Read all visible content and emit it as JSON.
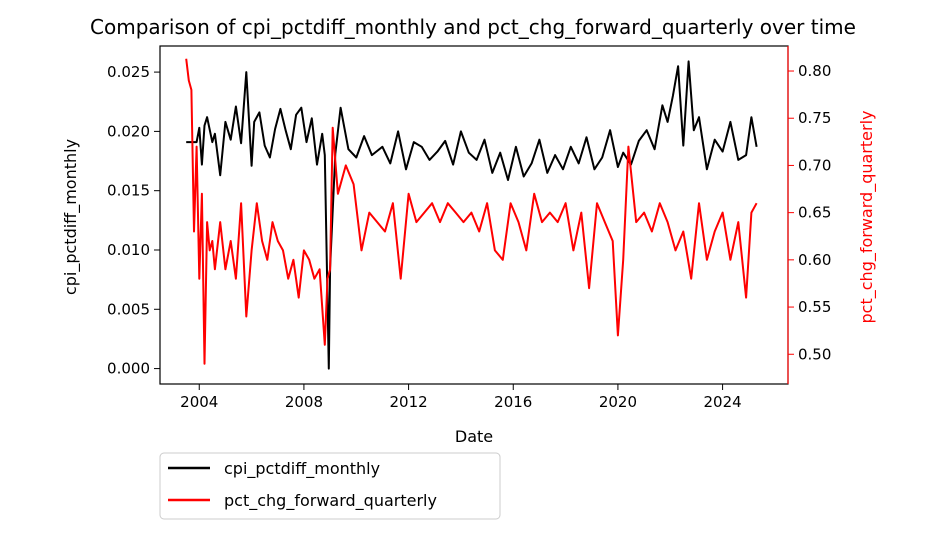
{
  "chart_data": {
    "type": "line",
    "title": "Comparison of cpi_pctdiff_monthly and pct_chg_forward_quarterly over time",
    "xlabel": "Date",
    "x_ticks": [
      "2004",
      "2008",
      "2012",
      "2016",
      "2020",
      "2024"
    ],
    "x_range": [
      2002.5,
      2026.5
    ],
    "left_axis": {
      "label": "cpi_pctdiff_monthly",
      "color": "#000000",
      "ylim": [
        -0.0013,
        0.0272
      ],
      "ticks": [
        "0.000",
        "0.005",
        "0.010",
        "0.015",
        "0.020",
        "0.025"
      ]
    },
    "right_axis": {
      "label": "pct_chg_forward_quarterly",
      "color": "#ff0000",
      "ylim": [
        0.4685,
        0.8265
      ],
      "ticks": [
        "0.50",
        "0.55",
        "0.60",
        "0.65",
        "0.70",
        "0.75",
        "0.80"
      ]
    },
    "legend": {
      "placement": "below-left",
      "entries": [
        "cpi_pctdiff_monthly",
        "pct_chg_forward_quarterly"
      ]
    },
    "series": [
      {
        "name": "cpi_pctdiff_monthly",
        "axis": "left",
        "color": "#000000",
        "x": [
          2003.5,
          2003.9,
          2004.0,
          2004.1,
          2004.2,
          2004.3,
          2004.5,
          2004.6,
          2004.8,
          2005.0,
          2005.2,
          2005.4,
          2005.6,
          2005.8,
          2006.0,
          2006.1,
          2006.3,
          2006.5,
          2006.7,
          2006.9,
          2007.1,
          2007.3,
          2007.5,
          2007.7,
          2007.9,
          2008.1,
          2008.3,
          2008.5,
          2008.7,
          2008.8,
          2008.95,
          2009.0,
          2009.2,
          2009.4,
          2009.7,
          2010.0,
          2010.3,
          2010.6,
          2011.0,
          2011.3,
          2011.6,
          2011.9,
          2012.2,
          2012.5,
          2012.8,
          2013.1,
          2013.4,
          2013.7,
          2014.0,
          2014.3,
          2014.6,
          2014.9,
          2015.2,
          2015.5,
          2015.8,
          2016.1,
          2016.4,
          2016.7,
          2017.0,
          2017.3,
          2017.6,
          2017.9,
          2018.2,
          2018.5,
          2018.8,
          2019.1,
          2019.4,
          2019.7,
          2020.0,
          2020.2,
          2020.5,
          2020.8,
          2021.1,
          2021.4,
          2021.7,
          2021.9,
          2022.1,
          2022.3,
          2022.5,
          2022.7,
          2022.9,
          2023.1,
          2023.4,
          2023.7,
          2024.0,
          2024.3,
          2024.6,
          2024.9,
          2025.1,
          2025.3
        ],
        "values": [
          0.0191,
          0.0191,
          0.0203,
          0.0172,
          0.0205,
          0.0212,
          0.0191,
          0.0198,
          0.0163,
          0.0208,
          0.0193,
          0.0221,
          0.019,
          0.025,
          0.0171,
          0.0208,
          0.0216,
          0.0188,
          0.0178,
          0.0202,
          0.0219,
          0.0201,
          0.0185,
          0.0214,
          0.022,
          0.0191,
          0.0211,
          0.0172,
          0.0198,
          0.018,
          0.0,
          0.0085,
          0.0181,
          0.022,
          0.0185,
          0.0178,
          0.0196,
          0.018,
          0.0187,
          0.0173,
          0.02,
          0.0168,
          0.0191,
          0.0187,
          0.0176,
          0.0183,
          0.0192,
          0.0172,
          0.02,
          0.0182,
          0.0176,
          0.0193,
          0.0165,
          0.0182,
          0.0159,
          0.0187,
          0.0162,
          0.0173,
          0.0193,
          0.0165,
          0.018,
          0.0168,
          0.0187,
          0.0173,
          0.0195,
          0.0168,
          0.0178,
          0.0201,
          0.017,
          0.0182,
          0.0172,
          0.0192,
          0.0201,
          0.0185,
          0.0222,
          0.0208,
          0.023,
          0.0255,
          0.0188,
          0.0259,
          0.0201,
          0.0212,
          0.0168,
          0.0193,
          0.0183,
          0.0208,
          0.0176,
          0.018,
          0.0212,
          0.0187
        ]
      },
      {
        "name": "pct_chg_forward_quarterly",
        "axis": "right",
        "color": "#ff0000",
        "x": [
          2003.5,
          2003.6,
          2003.7,
          2003.8,
          2003.9,
          2004.0,
          2004.1,
          2004.2,
          2004.3,
          2004.4,
          2004.5,
          2004.6,
          2004.8,
          2005.0,
          2005.2,
          2005.4,
          2005.6,
          2005.8,
          2006.0,
          2006.2,
          2006.4,
          2006.6,
          2006.8,
          2007.0,
          2007.2,
          2007.4,
          2007.6,
          2007.8,
          2008.0,
          2008.2,
          2008.4,
          2008.6,
          2008.8,
          2008.9,
          2009.0,
          2009.1,
          2009.3,
          2009.6,
          2009.9,
          2010.2,
          2010.5,
          2010.8,
          2011.1,
          2011.4,
          2011.7,
          2012.0,
          2012.3,
          2012.6,
          2012.9,
          2013.2,
          2013.5,
          2013.8,
          2014.1,
          2014.4,
          2014.7,
          2015.0,
          2015.3,
          2015.6,
          2015.9,
          2016.2,
          2016.5,
          2016.8,
          2017.1,
          2017.4,
          2017.7,
          2018.0,
          2018.3,
          2018.6,
          2018.9,
          2019.2,
          2019.5,
          2019.8,
          2020.0,
          2020.2,
          2020.4,
          2020.7,
          2021.0,
          2021.3,
          2021.6,
          2021.9,
          2022.2,
          2022.5,
          2022.8,
          2023.1,
          2023.4,
          2023.7,
          2024.0,
          2024.3,
          2024.6,
          2024.9,
          2025.1,
          2025.3
        ],
        "values": [
          0.813,
          0.79,
          0.78,
          0.63,
          0.72,
          0.58,
          0.67,
          0.49,
          0.64,
          0.61,
          0.62,
          0.59,
          0.64,
          0.59,
          0.62,
          0.58,
          0.66,
          0.54,
          0.61,
          0.66,
          0.62,
          0.6,
          0.64,
          0.62,
          0.61,
          0.58,
          0.6,
          0.56,
          0.61,
          0.6,
          0.58,
          0.59,
          0.51,
          0.58,
          0.59,
          0.74,
          0.67,
          0.7,
          0.68,
          0.61,
          0.65,
          0.64,
          0.63,
          0.66,
          0.58,
          0.67,
          0.64,
          0.65,
          0.66,
          0.64,
          0.66,
          0.65,
          0.64,
          0.65,
          0.63,
          0.66,
          0.61,
          0.6,
          0.66,
          0.64,
          0.61,
          0.67,
          0.64,
          0.65,
          0.64,
          0.66,
          0.61,
          0.65,
          0.57,
          0.66,
          0.64,
          0.62,
          0.52,
          0.6,
          0.72,
          0.64,
          0.65,
          0.63,
          0.66,
          0.64,
          0.61,
          0.63,
          0.58,
          0.66,
          0.6,
          0.63,
          0.65,
          0.6,
          0.64,
          0.56,
          0.65,
          0.66
        ]
      }
    ]
  }
}
